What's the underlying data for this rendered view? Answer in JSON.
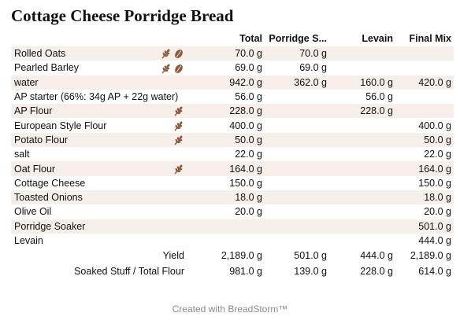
{
  "title": "Cottage Cheese Porridge Bread",
  "columns": [
    "",
    "",
    "Total",
    "Porridge S...",
    "Levain",
    "Final Mix"
  ],
  "rows": [
    {
      "name": "Rolled Oats",
      "total": "70.0 g",
      "porridge": "70.0 g",
      "levain": "",
      "final": "",
      "icons": [
        "wheat-icon",
        "grain-icon"
      ]
    },
    {
      "name": "Pearled Barley",
      "total": "69.0 g",
      "porridge": "69.0 g",
      "levain": "",
      "final": "",
      "icons": [
        "wheat-icon",
        "grain-icon"
      ]
    },
    {
      "name": "water",
      "total": "942.0 g",
      "porridge": "362.0 g",
      "levain": "160.0 g",
      "final": "420.0 g",
      "icons": []
    },
    {
      "name": "AP starter (66%: 34g AP + 22g water)",
      "total": "56.0 g",
      "porridge": "",
      "levain": "56.0 g",
      "final": "",
      "icons": []
    },
    {
      "name": "AP Flour",
      "total": "228.0 g",
      "porridge": "",
      "levain": "228.0 g",
      "final": "",
      "icons": [
        "wheat-icon"
      ]
    },
    {
      "name": "European Style Flour",
      "total": "400.0 g",
      "porridge": "",
      "levain": "",
      "final": "400.0 g",
      "icons": [
        "wheat-icon"
      ]
    },
    {
      "name": "Potato Flour",
      "total": "50.0 g",
      "porridge": "",
      "levain": "",
      "final": "50.0 g",
      "icons": [
        "wheat-icon"
      ]
    },
    {
      "name": "salt",
      "total": "22.0 g",
      "porridge": "",
      "levain": "",
      "final": "22.0 g",
      "icons": []
    },
    {
      "name": "Oat Flour",
      "total": "164.0 g",
      "porridge": "",
      "levain": "",
      "final": "164.0 g",
      "icons": [
        "wheat-icon"
      ]
    },
    {
      "name": "Cottage Cheese",
      "total": "150.0 g",
      "porridge": "",
      "levain": "",
      "final": "150.0 g",
      "icons": []
    },
    {
      "name": "Toasted Onions",
      "total": "18.0 g",
      "porridge": "",
      "levain": "",
      "final": "18.0 g",
      "icons": []
    },
    {
      "name": "Olive Oil",
      "total": "20.0 g",
      "porridge": "",
      "levain": "",
      "final": "20.0 g",
      "icons": []
    },
    {
      "name": "Porridge Soaker",
      "total": "",
      "porridge": "",
      "levain": "",
      "final": "501.0 g",
      "icons": []
    },
    {
      "name": "Levain",
      "total": "",
      "porridge": "",
      "levain": "",
      "final": "444.0 g",
      "icons": []
    }
  ],
  "summary": [
    {
      "label": "Yield",
      "total": "2,189.0 g",
      "porridge": "501.0 g",
      "levain": "444.0 g",
      "final": "2,189.0 g"
    },
    {
      "label": "Soaked Stuff / Total Flour",
      "total": "981.0 g",
      "porridge": "139.0 g",
      "levain": "228.0 g",
      "final": "614.0 g"
    }
  ],
  "footer": "Created with BreadStorm™",
  "colors": {
    "row_shade": "#f6efe9",
    "icon_brown": "#8a5a3a",
    "footer_text": "#8a8a8a"
  }
}
